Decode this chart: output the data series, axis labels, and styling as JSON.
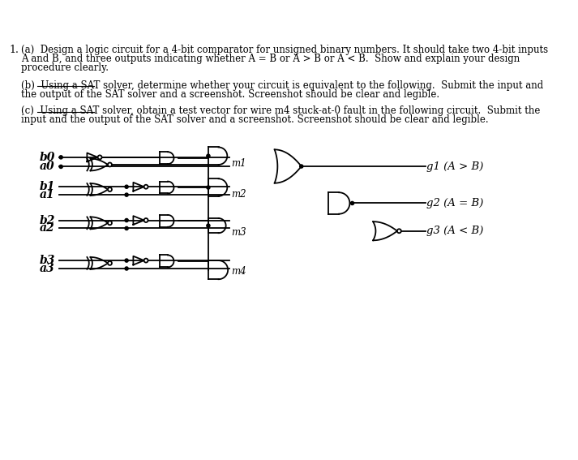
{
  "bg_color": "#ffffff",
  "text_color": "#000000",
  "line_a1": "(a)  Design a logic circuit for a 4-bit comparator for unsigned binary numbers. It should take two 4-bit inputs",
  "line_a2": "A and B, and three outputs indicating whether A = B or A > B or A < B.  Show and explain your design",
  "line_a3": "procedure clearly.",
  "line_b1": "(b)  Using a SAT solver, determine whether your circuit is equivalent to the following.  Submit the input and",
  "line_b2": "the output of the SAT solver and a screenshot. Screenshot should be clear and legible.",
  "line_c1": "(c)  Using a SAT solver, obtain a test vector for wire m4 stuck-at-0 fault in the following circuit.  Submit the",
  "line_c2": "input and the output of the SAT solver and a screenshot. Screenshot should be clear and legible.",
  "input_labels": [
    "b0",
    "a0",
    "b1",
    "a1",
    "b2",
    "a2",
    "b3",
    "a3"
  ],
  "mid_labels": [
    "m1",
    "m2",
    "m3",
    "m4"
  ],
  "out_labels": [
    "g1 (A > B)",
    "g2 (A = B)",
    "g3 (A < B)"
  ],
  "Yb0": 392,
  "Ya0": 378,
  "Yb1": 348,
  "Ya1": 336,
  "Yb2": 298,
  "Ya2": 286,
  "Yb3": 238,
  "Ya3": 226
}
